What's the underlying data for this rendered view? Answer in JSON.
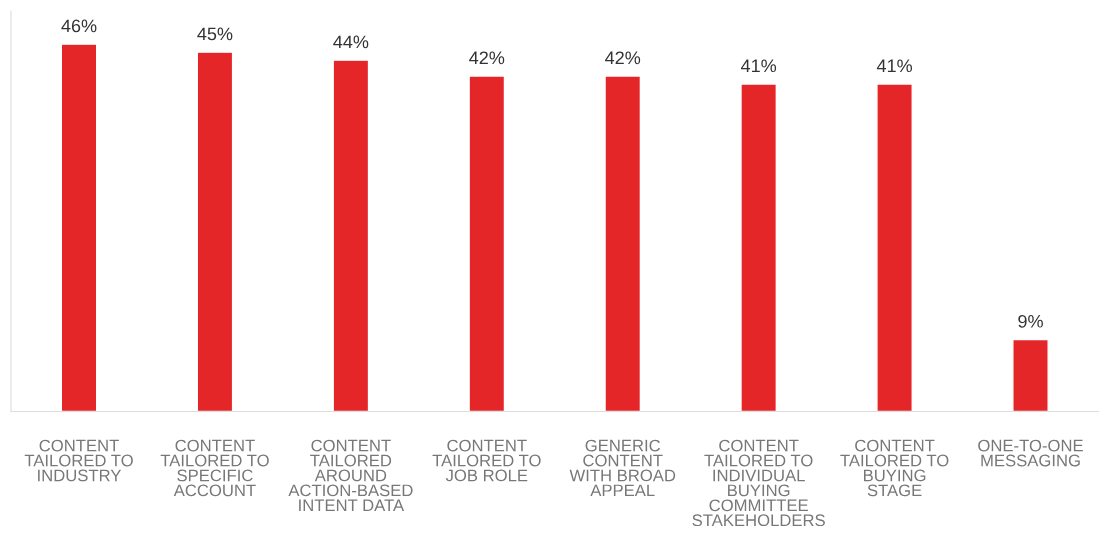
{
  "chart_data": {
    "type": "bar",
    "categories": [
      "CONTENT\nTAILORED TO\nINDUSTRY",
      "CONTENT\nTAILORED TO\nSPECIFIC\nACCOUNT",
      "CONTENT\nTAILORED\nAROUND\nACTION-BASED\nINTENT DATA",
      "CONTENT\nTAILORED TO\nJOB ROLE",
      "GENERIC\nCONTENT\nWITH BROAD\nAPPEAL",
      "CONTENT\nTAILORED TO\nINDIVIDUAL\nBUYING\nCOMMITTEE\nSTAKEHOLDERS",
      "CONTENT\nTAILORED TO\nBUYING\nSTAGE",
      "ONE-TO-ONE\nMESSAGING"
    ],
    "values": [
      46,
      45,
      44,
      42,
      42,
      41,
      41,
      9
    ],
    "value_labels": [
      "46%",
      "45%",
      "44%",
      "42%",
      "42%",
      "41%",
      "41%",
      "9%"
    ],
    "color": "#e52629",
    "grid": false
  }
}
